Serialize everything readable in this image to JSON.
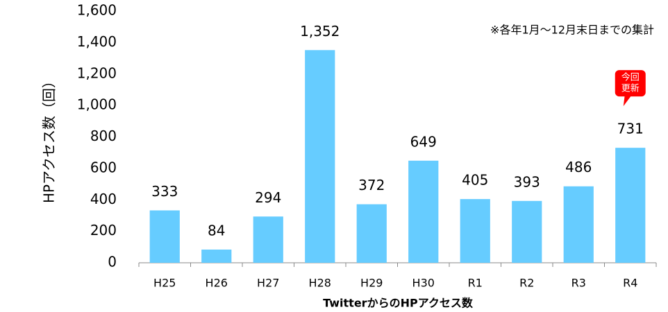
{
  "chart_data": {
    "type": "bar",
    "categories": [
      "H25",
      "H26",
      "H27",
      "H28",
      "H29",
      "H30",
      "R1",
      "R2",
      "R3",
      "R4"
    ],
    "values": [
      333,
      84,
      294,
      1352,
      372,
      649,
      405,
      393,
      486,
      731
    ],
    "value_labels": [
      "333",
      "84",
      "294",
      "1,352",
      "372",
      "649",
      "405",
      "393",
      "486",
      "731"
    ],
    "color": "#66ccff",
    "ylim": [
      0,
      1600
    ],
    "yticks": [
      0,
      200,
      400,
      600,
      800,
      {
        "value": 1000,
        "label": "1,000"
      },
      {
        "value": 1200,
        "label": "1,200"
      },
      {
        "value": 1400,
        "label": "1,400"
      },
      {
        "value": 1600,
        "label": "1,600"
      }
    ],
    "grid": false,
    "y_label": "HPアクセス数（回）",
    "x_label": "TwitterからのHPアクセス数",
    "annotation": "※各年1月～12月末日までの集計",
    "callout": {
      "lines": [
        "今回",
        "更新"
      ],
      "category": 9,
      "color": "#ff0000"
    }
  }
}
